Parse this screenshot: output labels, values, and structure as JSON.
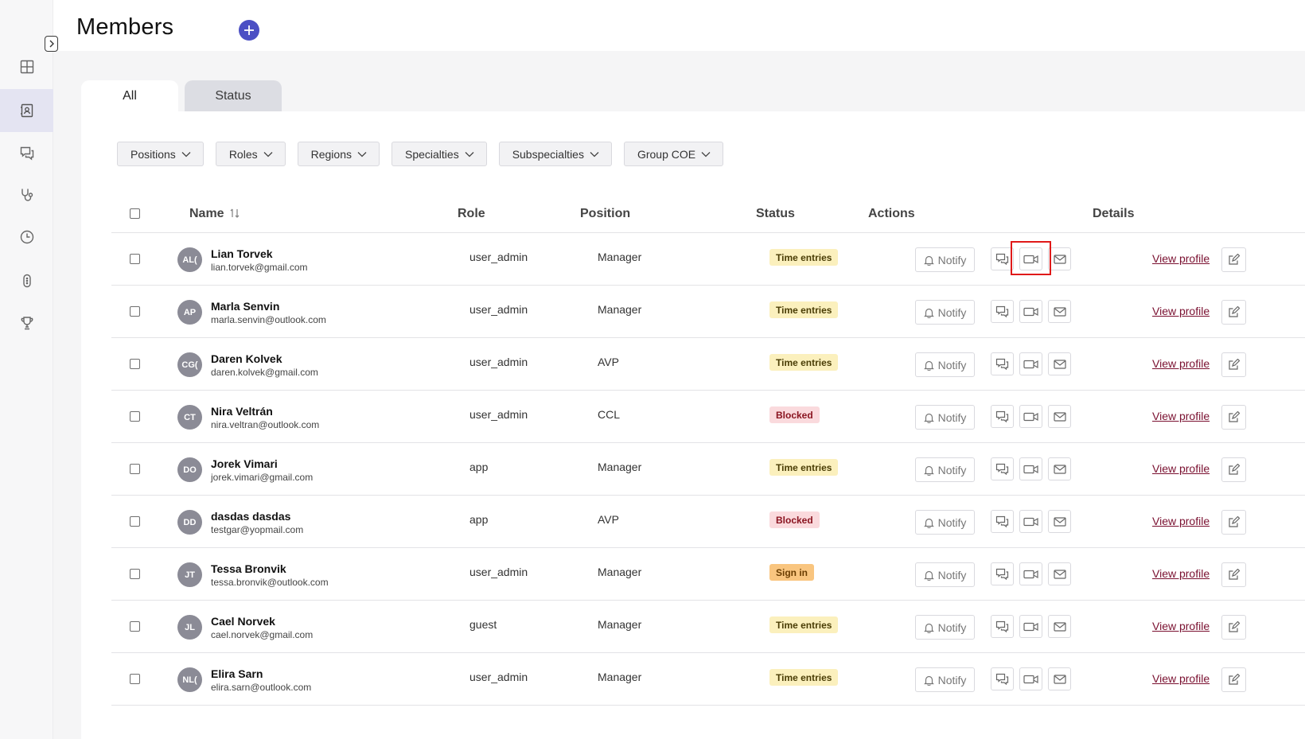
{
  "header": {
    "title": "Members"
  },
  "sidebar": {
    "items": [
      {
        "icon": "dashboard-icon",
        "active": false
      },
      {
        "icon": "contacts-icon",
        "active": true
      },
      {
        "icon": "chat-icon",
        "active": false
      },
      {
        "icon": "stethoscope-icon",
        "active": false
      },
      {
        "icon": "clock-icon",
        "active": false
      },
      {
        "icon": "device-icon",
        "active": false
      },
      {
        "icon": "trophy-icon",
        "active": false
      }
    ]
  },
  "tabs": [
    {
      "label": "All"
    },
    {
      "label": "Status"
    }
  ],
  "filters": [
    {
      "label": "Positions"
    },
    {
      "label": "Roles"
    },
    {
      "label": "Regions"
    },
    {
      "label": "Specialties"
    },
    {
      "label": "Subspecialties"
    },
    {
      "label": "Group COE"
    }
  ],
  "table": {
    "headers": {
      "name": "Name",
      "role": "Role",
      "position": "Position",
      "status": "Status",
      "actions": "Actions",
      "details": "Details"
    },
    "notify_label": "Notify",
    "view_label": "View profile",
    "rows": [
      {
        "initials": "AL(",
        "name": "Lian Torvek",
        "email": "lian.torvek@gmail.com",
        "role": "user_admin",
        "position": "Manager",
        "status": "Time entries",
        "status_kind": "time"
      },
      {
        "initials": "AP",
        "name": "Marla Senvin",
        "email": "marla.senvin@outlook.com",
        "role": "user_admin",
        "position": "Manager",
        "status": "Time entries",
        "status_kind": "time"
      },
      {
        "initials": "CG(",
        "name": "Daren Kolvek",
        "email": "daren.kolvek@gmail.com",
        "role": "user_admin",
        "position": "AVP",
        "status": "Time entries",
        "status_kind": "time"
      },
      {
        "initials": "CT",
        "name": "Nira Veltrán",
        "email": "nira.veltran@outlook.com",
        "role": "user_admin",
        "position": "CCL",
        "status": "Blocked",
        "status_kind": "blocked"
      },
      {
        "initials": "DO",
        "name": "Jorek Vimari",
        "email": "jorek.vimari@gmail.com",
        "role": "app",
        "position": "Manager",
        "status": "Time entries",
        "status_kind": "time"
      },
      {
        "initials": "DD",
        "name": "dasdas dasdas",
        "email": "testgar@yopmail.com",
        "role": "app",
        "position": "AVP",
        "status": "Blocked",
        "status_kind": "blocked"
      },
      {
        "initials": "JT",
        "name": "Tessa Bronvik",
        "email": "tessa.bronvik@outlook.com",
        "role": "user_admin",
        "position": "Manager",
        "status": "Sign in",
        "status_kind": "sign"
      },
      {
        "initials": "JL",
        "name": "Cael Norvek",
        "email": "cael.norvek@gmail.com",
        "role": "guest",
        "position": "Manager",
        "status": "Time entries",
        "status_kind": "time"
      },
      {
        "initials": "NL(",
        "name": "Elira Sarn",
        "email": "elira.sarn@outlook.com",
        "role": "user_admin",
        "position": "Manager",
        "status": "Time entries",
        "status_kind": "time"
      }
    ]
  },
  "colors": {
    "accent": "#4b4fc4",
    "highlight": "#e01919",
    "link": "#7a1030"
  }
}
